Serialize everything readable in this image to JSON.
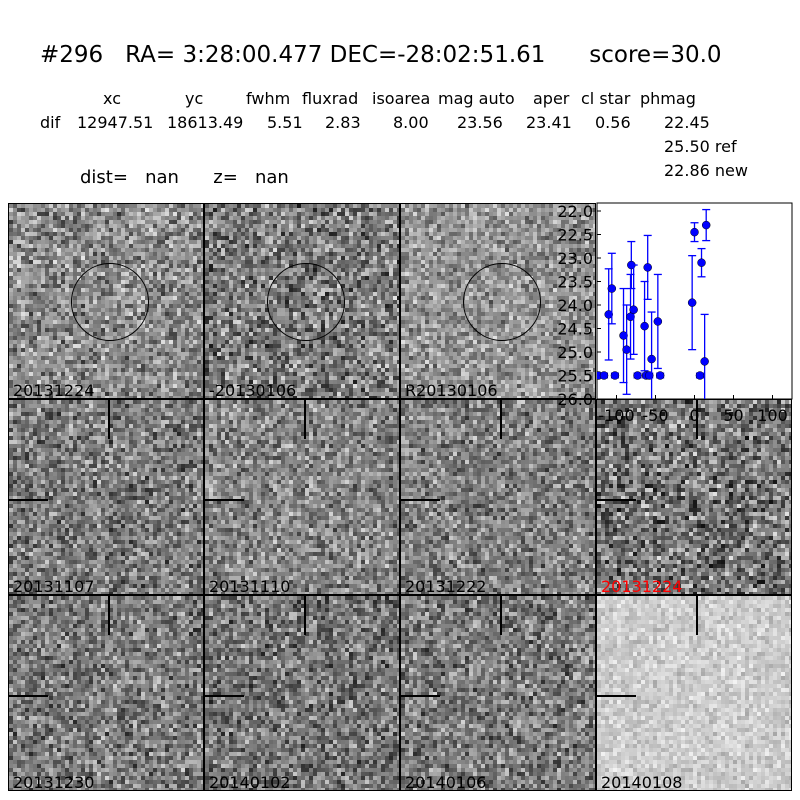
{
  "header": {
    "title": "#296   RA= 3:28:00.477 DEC=-28:02:51.61      score=30.0",
    "columns": [
      "xc",
      "yc",
      "fwhm",
      "fluxrad",
      "isoarea",
      "mag auto",
      "aper",
      "cl star",
      "phmag"
    ],
    "row_label": "dif",
    "values": [
      "12947.51",
      "18613.49",
      "5.51",
      "2.83",
      "8.00",
      "23.56",
      "23.41",
      "0.56",
      "22.45"
    ],
    "ref": "25.50 ref",
    "new": "22.86 new",
    "dist": "dist=   nan      z=   nan"
  },
  "panels": [
    {
      "label": "20131224",
      "marker": "circle"
    },
    {
      "label": "-20130106",
      "marker": "circle"
    },
    {
      "label": "R20130106",
      "marker": "circle"
    },
    {
      "label": "20131107",
      "marker": "crosshair"
    },
    {
      "label": "20131110",
      "marker": "crosshair"
    },
    {
      "label": "20131222",
      "marker": "crosshair"
    },
    {
      "label": "20131224",
      "marker": "crosshair",
      "color": "#ff0000"
    },
    {
      "label": "20131230",
      "marker": "crosshair"
    },
    {
      "label": "20140102",
      "marker": "crosshair"
    },
    {
      "label": "20140106",
      "marker": "crosshair"
    },
    {
      "label": "20140108",
      "marker": "crosshair"
    }
  ],
  "chart_data": {
    "type": "scatter",
    "xlim": [
      -125,
      125
    ],
    "ylim": [
      26.0,
      22.0
    ],
    "y_inverted": true,
    "xticks": [
      "-100",
      "-50",
      "0",
      "50",
      "100"
    ],
    "xtick_values": [
      -100,
      -50,
      0,
      50,
      100
    ],
    "yticks": [
      "22.0",
      "22.5",
      "23.0",
      "23.5",
      "24.0",
      "24.5",
      "25.0",
      "25.5",
      "26.0"
    ],
    "ytick_values": [
      22.0,
      22.5,
      23.0,
      23.5,
      24.0,
      24.5,
      25.0,
      25.5,
      26.0
    ],
    "color": "#0000ff",
    "points": [
      {
        "x": -123,
        "y": 25.5,
        "err": 0.05
      },
      {
        "x": -116,
        "y": 25.5,
        "err": 0.05
      },
      {
        "x": -110,
        "y": 24.2,
        "err": 0.97
      },
      {
        "x": -106,
        "y": 23.65,
        "err": 0.75
      },
      {
        "x": -102,
        "y": 25.5,
        "err": 0.05
      },
      {
        "x": -91,
        "y": 24.65,
        "err": 1.0
      },
      {
        "x": -87,
        "y": 24.95,
        "err": 0.95
      },
      {
        "x": -82,
        "y": 24.25,
        "err": 0.9
      },
      {
        "x": -81,
        "y": 23.15,
        "err": 0.5
      },
      {
        "x": -78,
        "y": 24.1,
        "err": 0.95
      },
      {
        "x": -73,
        "y": 25.5,
        "err": 0.05
      },
      {
        "x": -64,
        "y": 24.45,
        "err": 0.95
      },
      {
        "x": -62,
        "y": 25.5,
        "err": 0.05
      },
      {
        "x": -60,
        "y": 23.2,
        "err": 0.68
      },
      {
        "x": -58,
        "y": 25.5,
        "err": 0.05
      },
      {
        "x": -55,
        "y": 25.15,
        "err": 1.0
      },
      {
        "x": -47,
        "y": 24.35,
        "err": 1.0
      },
      {
        "x": -44,
        "y": 25.5,
        "err": 0.05
      },
      {
        "x": -3,
        "y": 23.95,
        "err": 1.0
      },
      {
        "x": 0,
        "y": 22.45,
        "err": 0.2
      },
      {
        "x": 7,
        "y": 25.5,
        "err": 0.05
      },
      {
        "x": 9,
        "y": 23.1,
        "err": 0.3
      },
      {
        "x": 13,
        "y": 25.2,
        "err": 1.0
      },
      {
        "x": 15,
        "y": 22.3,
        "err": 0.33
      }
    ]
  }
}
